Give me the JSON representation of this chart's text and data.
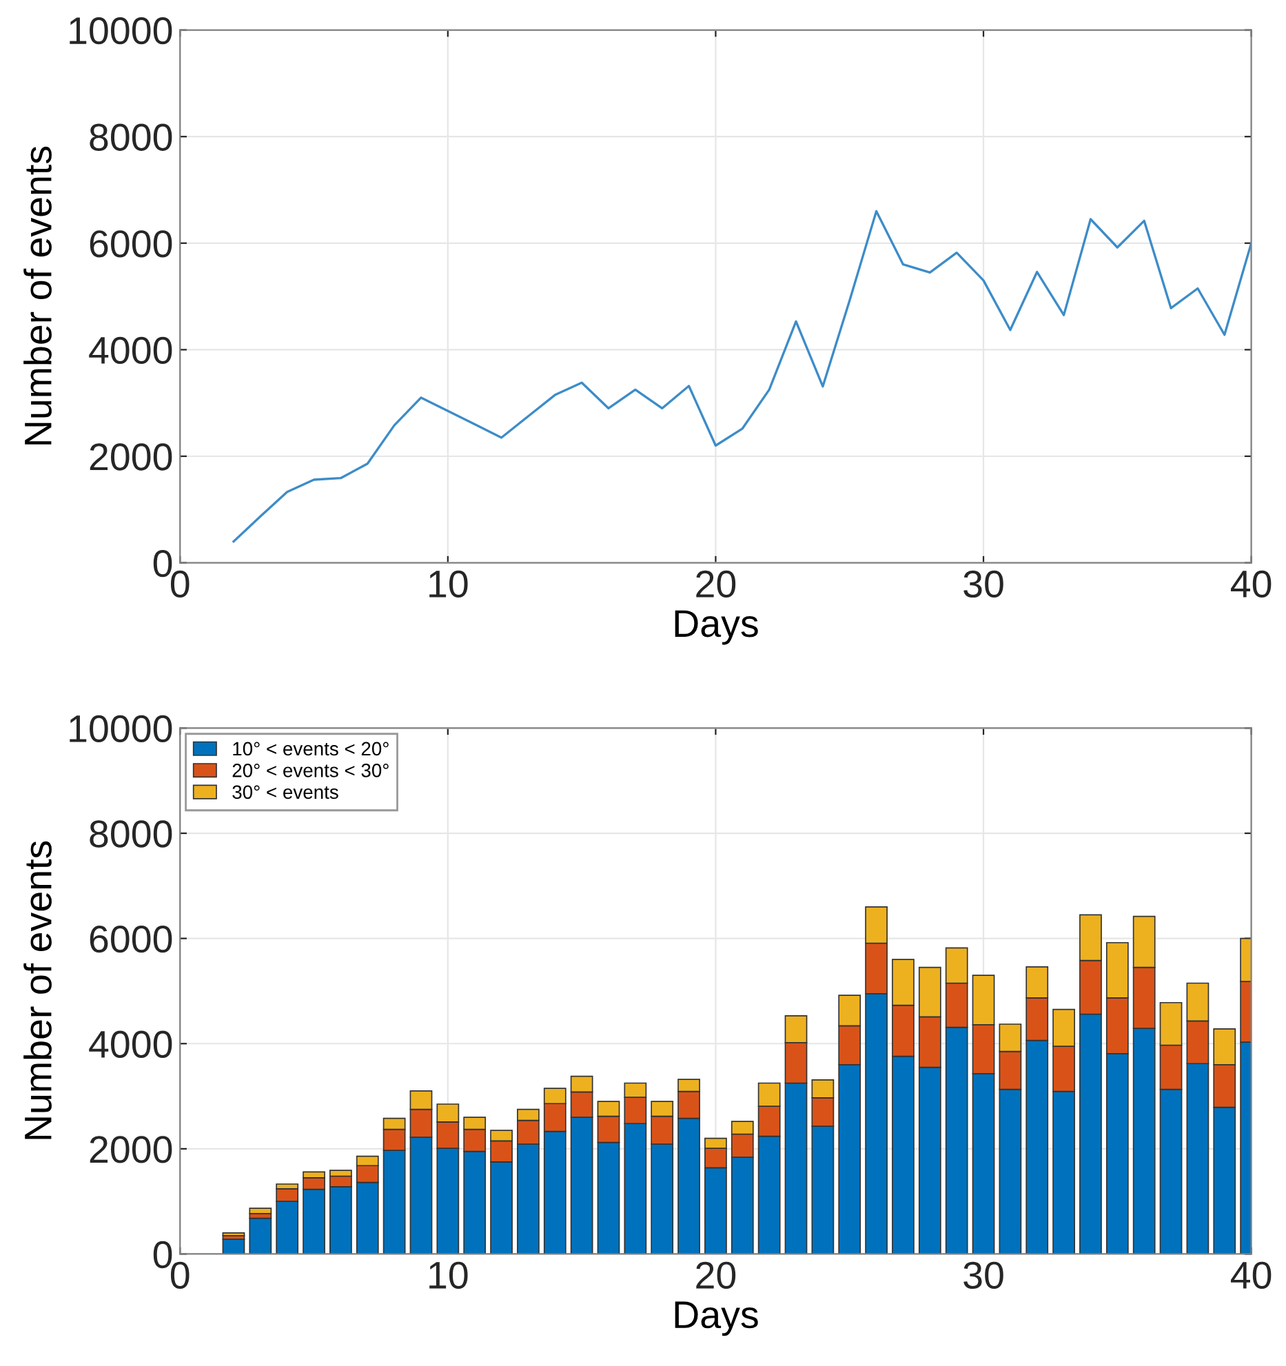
{
  "chart_data": [
    {
      "type": "line",
      "xlabel": "Days",
      "ylabel": "Number of events",
      "xlim": [
        0,
        40
      ],
      "ylim": [
        0,
        10000
      ],
      "xticks": [
        0,
        10,
        20,
        30,
        40
      ],
      "yticks": [
        0,
        2000,
        4000,
        6000,
        8000,
        10000
      ],
      "grid": true,
      "legend": false,
      "x": [
        2,
        3,
        4,
        5,
        6,
        7,
        8,
        9,
        10,
        11,
        12,
        13,
        14,
        15,
        16,
        17,
        18,
        19,
        20,
        21,
        22,
        23,
        24,
        25,
        26,
        27,
        28,
        29,
        30,
        31,
        32,
        33,
        34,
        35,
        36,
        37,
        38,
        39,
        40
      ],
      "series": [
        {
          "color": "#3d8cc8",
          "values": [
            400,
            870,
            1330,
            1560,
            1590,
            1860,
            2580,
            3100,
            2850,
            2600,
            2350,
            2750,
            3150,
            3380,
            2900,
            3250,
            2900,
            3320,
            2200,
            2520,
            3250,
            4530,
            3310,
            4920,
            6600,
            5600,
            5450,
            5820,
            5300,
            4370,
            5460,
            4650,
            6450,
            5920,
            6420,
            4780,
            5150,
            4280,
            6000
          ]
        }
      ]
    },
    {
      "type": "bar",
      "stacked": true,
      "xlabel": "Days",
      "ylabel": "Number of events",
      "xlim": [
        0,
        40
      ],
      "ylim": [
        0,
        10000
      ],
      "xticks": [
        0,
        10,
        20,
        30,
        40
      ],
      "yticks": [
        0,
        2000,
        4000,
        6000,
        8000,
        10000
      ],
      "grid": true,
      "legend": "top left",
      "x": [
        2,
        3,
        4,
        5,
        6,
        7,
        8,
        9,
        10,
        11,
        12,
        13,
        14,
        15,
        16,
        17,
        18,
        19,
        20,
        21,
        22,
        23,
        24,
        25,
        26,
        27,
        28,
        29,
        30,
        31,
        32,
        33,
        34,
        35,
        36,
        37,
        38,
        39,
        40
      ],
      "series": [
        {
          "name": "10° < events < 20°",
          "color": "#0072bd",
          "values": [
            280,
            680,
            1000,
            1230,
            1280,
            1360,
            1970,
            2220,
            2010,
            1950,
            1750,
            2090,
            2330,
            2600,
            2120,
            2480,
            2090,
            2580,
            1640,
            1840,
            2240,
            3250,
            2430,
            3600,
            4950,
            3760,
            3550,
            4310,
            3430,
            3130,
            4060,
            3090,
            4560,
            3810,
            4290,
            3130,
            3620,
            2790,
            4030
          ]
        },
        {
          "name": "20° < events < 30°",
          "color": "#d95319",
          "values": [
            70,
            90,
            240,
            220,
            200,
            320,
            400,
            530,
            500,
            420,
            400,
            450,
            530,
            480,
            500,
            500,
            530,
            510,
            370,
            440,
            570,
            770,
            540,
            740,
            960,
            970,
            960,
            840,
            930,
            720,
            810,
            860,
            1020,
            1060,
            1160,
            840,
            810,
            810,
            1150
          ]
        },
        {
          "name": "30° < events",
          "color": "#edb120",
          "values": [
            50,
            100,
            90,
            110,
            110,
            180,
            210,
            350,
            340,
            230,
            200,
            210,
            290,
            300,
            280,
            270,
            280,
            230,
            190,
            240,
            440,
            510,
            340,
            580,
            690,
            870,
            940,
            670,
            940,
            520,
            590,
            700,
            870,
            1050,
            970,
            810,
            720,
            680,
            820
          ]
        }
      ]
    }
  ]
}
